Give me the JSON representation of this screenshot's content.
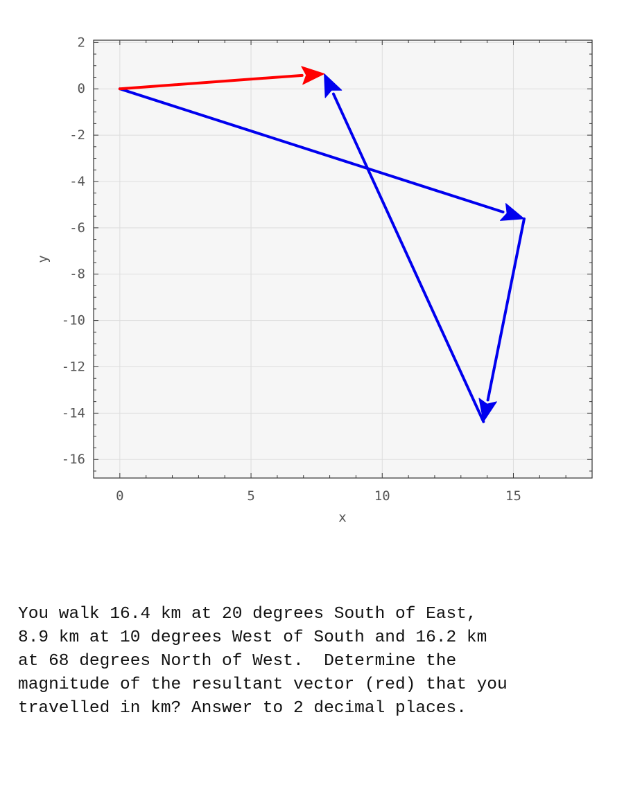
{
  "chart_data": {
    "type": "line",
    "xlabel": "x",
    "ylabel": "y",
    "xlim": [
      -1,
      18
    ],
    "ylim": [
      -16.8,
      2.1
    ],
    "xticks": [
      0,
      5,
      10,
      15
    ],
    "yticks": [
      2,
      0,
      -2,
      -4,
      -6,
      -8,
      -10,
      -12,
      -14,
      -16
    ],
    "grid": true,
    "vectors": [
      {
        "name": "leg-1",
        "color": "#0000ee",
        "from": [
          0,
          0
        ],
        "to": [
          15.41,
          -5.61
        ]
      },
      {
        "name": "leg-2",
        "color": "#0000ee",
        "from": [
          15.41,
          -5.61
        ],
        "to": [
          13.86,
          -14.37
        ]
      },
      {
        "name": "leg-3",
        "color": "#0000ee",
        "from": [
          13.86,
          -14.37
        ],
        "to": [
          7.79,
          0.65
        ]
      },
      {
        "name": "resultant",
        "color": "#ff0000",
        "from": [
          0,
          0
        ],
        "to": [
          7.79,
          0.65
        ]
      }
    ]
  },
  "question": {
    "lines": [
      "You walk 16.4 km at 20 degrees South of East,",
      "8.9 km at 10 degrees West of South and 16.2 km",
      "at 68 degrees North of West.  Determine the",
      "magnitude of the resultant vector (red) that you",
      "travelled in km? Answer to 2 decimal places."
    ]
  }
}
